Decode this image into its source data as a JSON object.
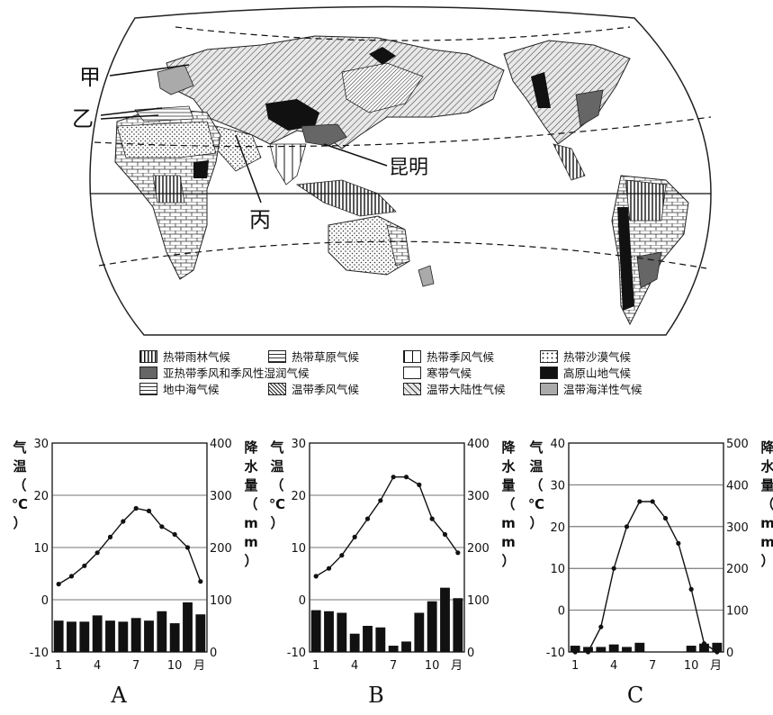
{
  "map": {
    "labels": [
      "甲",
      "乙",
      "丙",
      "昆明"
    ]
  },
  "legend": [
    {
      "label": "热带雨林气候",
      "pattern": "vlines"
    },
    {
      "label": "热带草原气候",
      "pattern": "brick"
    },
    {
      "label": "热带季风气候",
      "pattern": "wideVlines"
    },
    {
      "label": "热带沙漠气候",
      "pattern": "dots"
    },
    {
      "label": "亚热带季风和季风性湿润气候",
      "pattern": "darkgray"
    },
    {
      "label": "寒带气候",
      "pattern": "white"
    },
    {
      "label": "高原山地气候",
      "pattern": "black"
    },
    {
      "label": "地中海气候",
      "pattern": "hlines"
    },
    {
      "label": "温带季风气候",
      "pattern": "diagDense"
    },
    {
      "label": "温带大陆性气候",
      "pattern": "diag"
    },
    {
      "label": "温带海洋性气候",
      "pattern": "lightgray"
    }
  ],
  "chart_data": [
    {
      "type": "bar+line",
      "title": "A",
      "ylabel_left": "气温（℃）",
      "ylabel_right": "降水量（mm）",
      "x": [
        1,
        2,
        3,
        4,
        5,
        6,
        7,
        8,
        9,
        10,
        11,
        12
      ],
      "x_ticks": [
        "1",
        "4",
        "7",
        "10",
        "月"
      ],
      "temp_ticks": [
        "30",
        "20",
        "10",
        "0",
        "-10"
      ],
      "precip_ticks": [
        "400",
        "300",
        "200",
        "100",
        "0"
      ],
      "temp_range": [
        -10,
        30
      ],
      "precip_range": [
        0,
        400
      ],
      "temperature": [
        3,
        4.5,
        6.5,
        9,
        12,
        15,
        17.5,
        17,
        14,
        12.5,
        10,
        3.5
      ],
      "precipitation": [
        60,
        58,
        58,
        70,
        60,
        58,
        65,
        60,
        78,
        55,
        95,
        72
      ]
    },
    {
      "type": "bar+line",
      "title": "B",
      "ylabel_left": "气温（℃）",
      "ylabel_right": "降水量（mm）",
      "x": [
        1,
        2,
        3,
        4,
        5,
        6,
        7,
        8,
        9,
        10,
        11,
        12
      ],
      "x_ticks": [
        "1",
        "4",
        "7",
        "10",
        "月"
      ],
      "temp_ticks": [
        "30",
        "20",
        "10",
        "0",
        "-10"
      ],
      "precip_ticks": [
        "400",
        "300",
        "200",
        "100",
        "0"
      ],
      "temp_range": [
        -10,
        30
      ],
      "precip_range": [
        0,
        400
      ],
      "temperature": [
        4.5,
        6,
        8.5,
        12,
        15.5,
        19,
        23.5,
        23.5,
        22,
        15.5,
        12.5,
        9
      ],
      "precipitation": [
        80,
        78,
        75,
        35,
        50,
        47,
        12,
        20,
        75,
        97,
        123,
        103
      ]
    },
    {
      "type": "bar+line",
      "title": "C",
      "ylabel_left": "气温（℃）",
      "ylabel_right": "降水量（mm）",
      "x": [
        1,
        2,
        3,
        4,
        5,
        6,
        7,
        8,
        9,
        10,
        11,
        12
      ],
      "x_ticks": [
        "1",
        "4",
        "7",
        "10",
        "月"
      ],
      "temp_ticks": [
        "40",
        "30",
        "20",
        "10",
        "0",
        "-10"
      ],
      "precip_ticks": [
        "500",
        "400",
        "300",
        "200",
        "100",
        "0"
      ],
      "temp_range": [
        -10,
        40
      ],
      "precip_range": [
        0,
        500
      ],
      "temperature": [
        -10,
        -10,
        -4,
        10,
        20,
        26,
        26,
        22,
        16,
        5,
        -8,
        -10
      ],
      "precipitation": [
        15,
        12,
        12,
        18,
        12,
        22,
        0,
        0,
        0,
        15,
        20,
        22
      ]
    }
  ]
}
